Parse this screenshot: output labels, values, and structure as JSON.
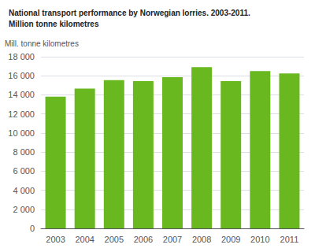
{
  "chart_data": {
    "type": "bar",
    "title": "National transport performance by Norwegian lorries. 2003-2011.",
    "subtitle": "Million tonne kilometres",
    "ylabel": "Mill. tonne kilometres",
    "categories": [
      "2003",
      "2004",
      "2005",
      "2006",
      "2007",
      "2008",
      "2009",
      "2010",
      "2011"
    ],
    "values": [
      13800,
      14650,
      15550,
      15450,
      15850,
      16900,
      15450,
      16500,
      16250
    ],
    "color": "#6ab820",
    "ylim": [
      0,
      18000
    ],
    "yticks": [
      0,
      {
        "value": 2000,
        "label": "2 000"
      },
      {
        "value": 4000,
        "label": "4 000"
      },
      {
        "value": 6000,
        "label": "6 000"
      },
      {
        "value": 8000,
        "label": "8 000"
      },
      {
        "value": 10000,
        "label": "10 000"
      },
      {
        "value": 12000,
        "label": "12 000"
      },
      {
        "value": 14000,
        "label": "14 000"
      },
      {
        "value": 16000,
        "label": "16 000"
      },
      {
        "value": 18000,
        "label": "18 000"
      }
    ],
    "grid": true
  }
}
